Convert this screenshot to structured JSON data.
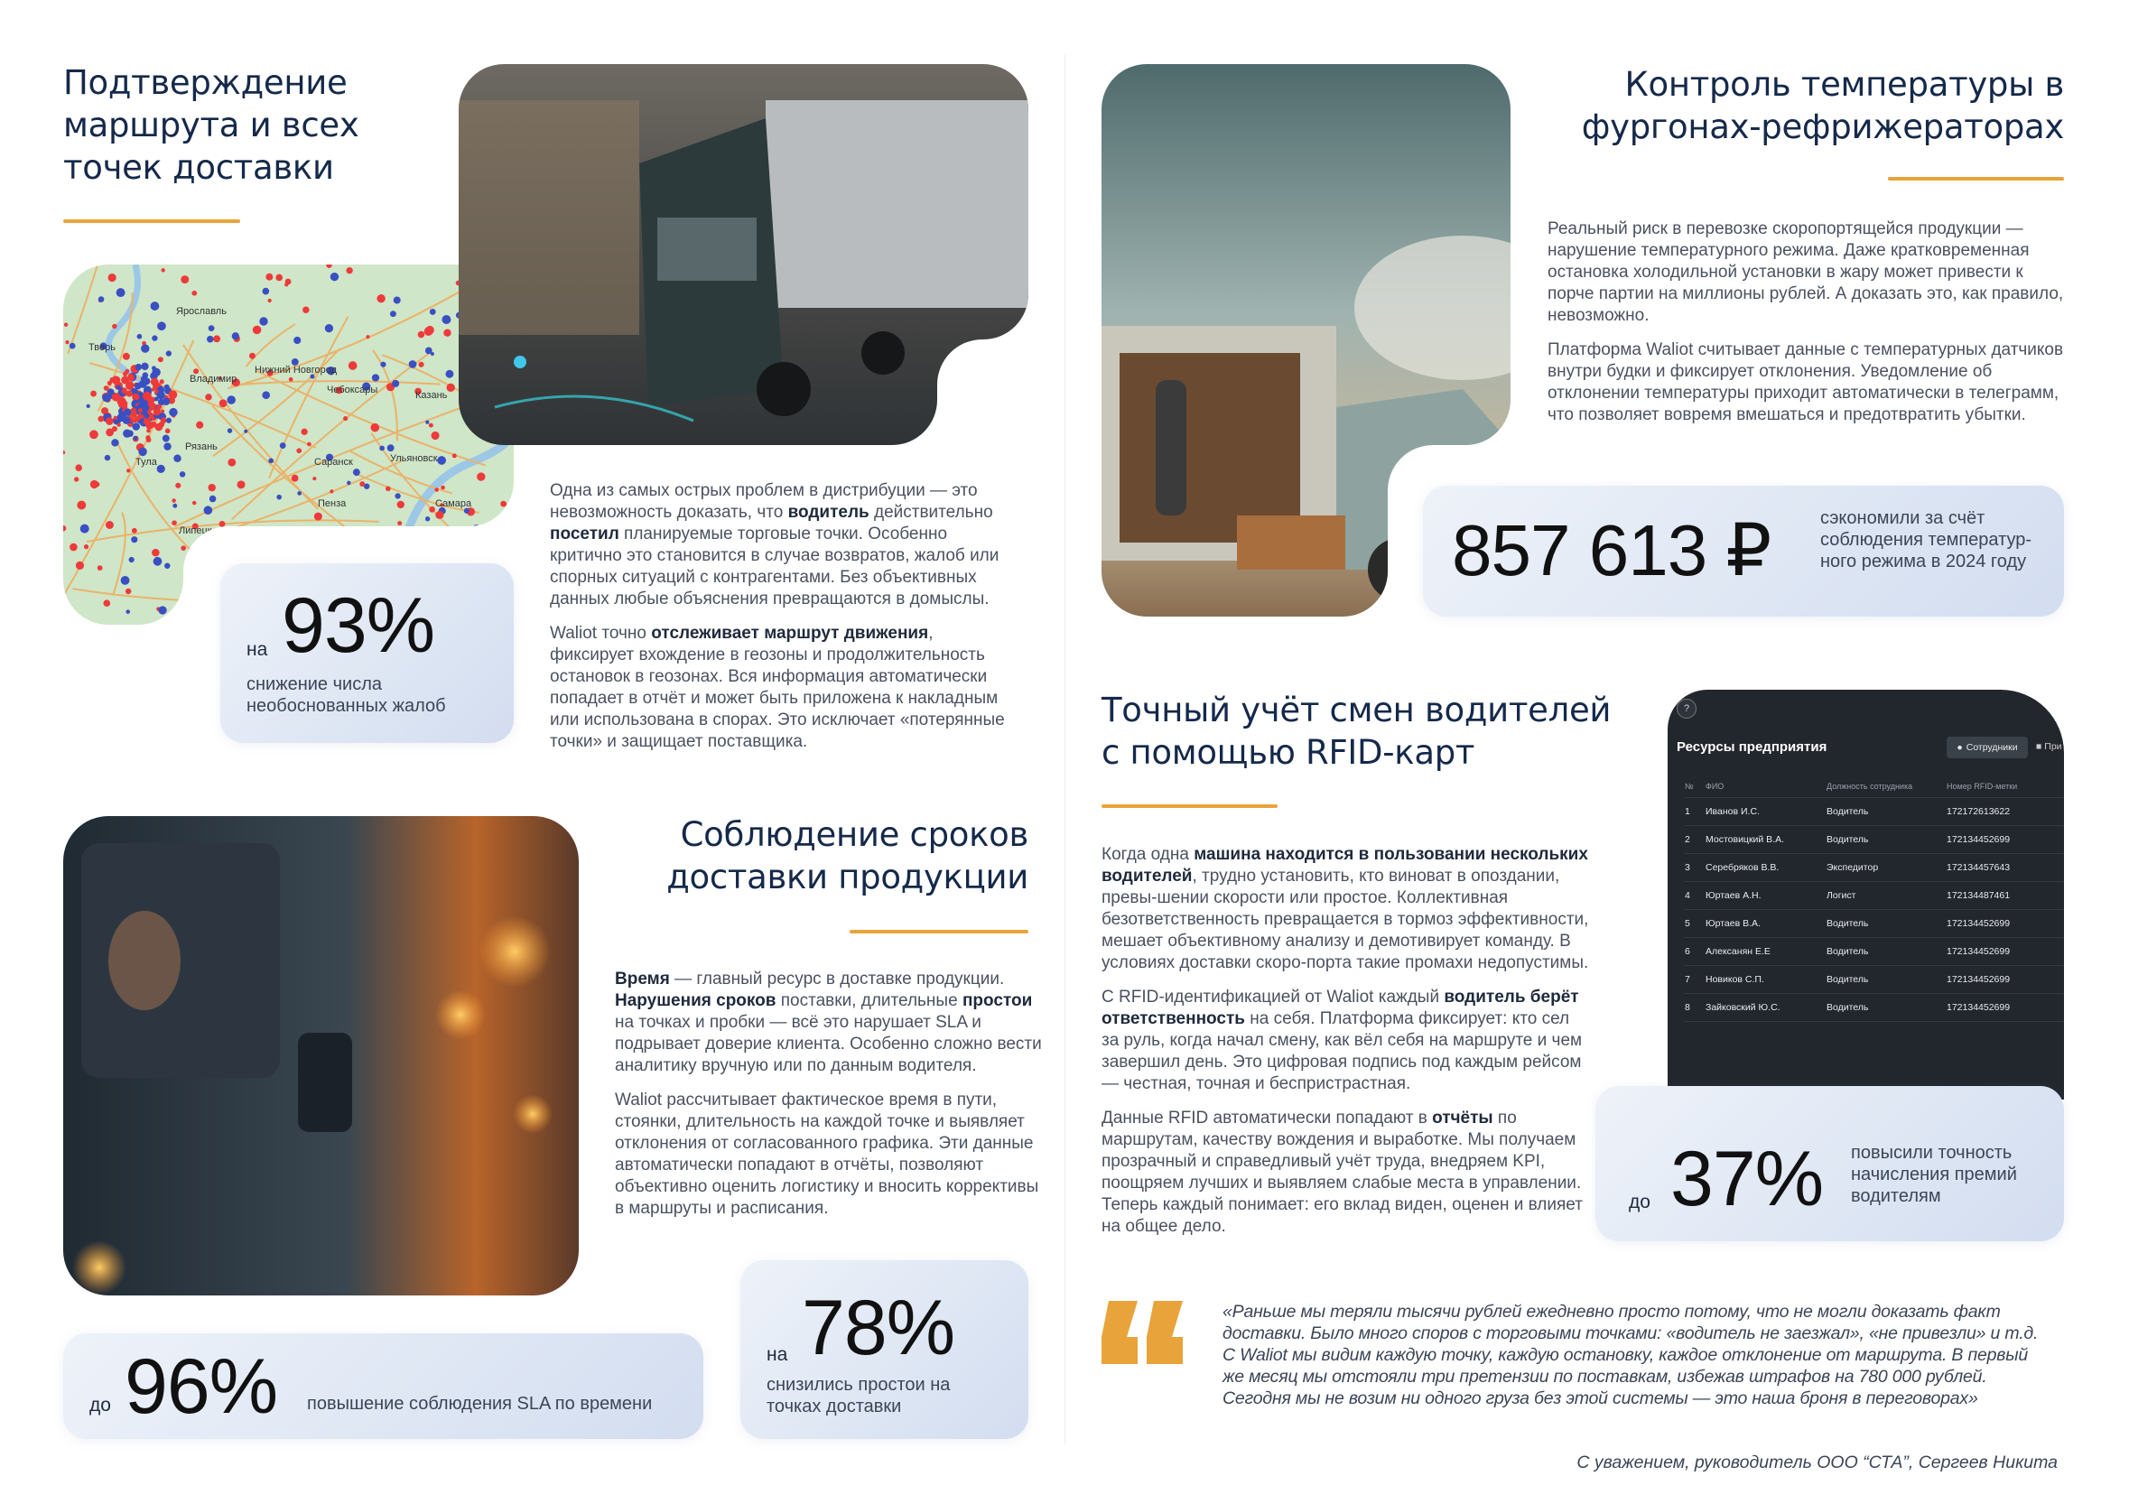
{
  "accent": "#e8a33a",
  "heading_color": "#15294a",
  "section_route": {
    "title": [
      "Подтверждение",
      "маршрута и всех",
      "точек доставки"
    ],
    "paragraphs": [
      [
        {
          "t": "Одна из самых острых проблем в дистрибуции — это невозможность доказать, что "
        },
        {
          "t": "водитель",
          "b": true
        },
        {
          "t": " действительно "
        },
        {
          "t": "посетил",
          "b": true
        },
        {
          "t": " планируемые торговые точки. Особенно критично это становится в случае возвратов, жалоб или спорных ситуаций с контрагентами. Без объективных данных любые объяснения превращаются в домыслы."
        }
      ],
      [
        {
          "t": "Waliot точно "
        },
        {
          "t": "отслеживает маршрут движения",
          "b": true
        },
        {
          "t": ", фиксирует вхождение в геозоны и продолжительность остановок в геозонах. Вся информация автоматически попадает в отчёт и может быть приложена к накладным или использована в спорах. Это исключает «потерянные точки» и защищает поставщика."
        }
      ]
    ],
    "stat": {
      "prefix": "на",
      "value": "93%",
      "label": "снижение числа необоснованных жалоб"
    },
    "map_labels": [
      "Ярославль",
      "Тверь",
      "Владимир",
      "Нижний Новгород",
      "Чебоксары",
      "Казань",
      "Рязань",
      "Тула",
      "Саранск",
      "Ульяновск",
      "Пенза",
      "Липецк",
      "Самара"
    ]
  },
  "section_sla": {
    "title": [
      "Соблюдение сроков",
      "доставки продукции"
    ],
    "paragraphs": [
      [
        {
          "t": "Время",
          "b": true
        },
        {
          "t": " — главный ресурс в доставке продукции. "
        },
        {
          "t": "Нарушения сроков",
          "b": true
        },
        {
          "t": " поставки, длительные "
        },
        {
          "t": "простои",
          "b": true
        },
        {
          "t": " на точках и пробки — всё это нарушает SLA и подрывает доверие клиента. Особенно сложно вести аналитику вручную или по данным водителя."
        }
      ],
      [
        {
          "t": "Waliot рассчитывает фактическое время в пути, стоянки, длительность на каждой точке и выявляет отклонения от согласованного графика. Эти данные автоматически попадают в отчёты, позволяют объективно оценить логистику и вносить коррективы в маршруты и расписания."
        }
      ]
    ],
    "stat_sla": {
      "prefix": "до",
      "value": "96%",
      "label": "повышение соблюдения SLA по времени"
    },
    "stat_idle": {
      "prefix": "на",
      "value": "78%",
      "label": "снизились простои на точках доставки"
    }
  },
  "section_temp": {
    "title": [
      "Контроль температуры в",
      "фургонах-рефрижераторах"
    ],
    "paragraphs": [
      [
        {
          "t": "Реальный риск в перевозке скоропортящейся продукции — нарушение температурного режима. Даже кратковременная остановка холодильной установки в жару может привести к порче партии на миллионы рублей. А доказать это, как правило, невозможно."
        }
      ],
      [
        {
          "t": "Платформа Waliot считывает данные с температурных датчиков внутри будки и фиксирует отклонения. Уведомление об отклонении температуры приходит автоматически в телеграмм, что позволяет вовремя вмешаться и предотвратить убытки."
        }
      ]
    ],
    "stat": {
      "value": "857 613 ₽",
      "label": "сэкономили за счёт соблюдения температур-ного режима в 2024 году"
    }
  },
  "section_rfid": {
    "title": [
      "Точный учёт смен водителей",
      "с помощью RFID-карт"
    ],
    "paragraphs": [
      [
        {
          "t": "Когда одна "
        },
        {
          "t": "машина находится в пользовании нескольких водителей",
          "b": true
        },
        {
          "t": ", трудно установить, кто виноват в опоздании, превы-шении скорости или простое. Коллективная безответственность превращается в тормоз эффективности, мешает объективному анализу и демотивирует команду. В условиях доставки скоро-порта такие промахи недопустимы."
        }
      ],
      [
        {
          "t": "С RFID-идентификацией от Waliot каждый "
        },
        {
          "t": "водитель берёт ответственность",
          "b": true
        },
        {
          "t": " на себя. Платформа фиксирует: кто сел за руль, когда начал смену, как вёл себя на маршруте и чем завершил день. Это цифровая подпись под каждым рейсом — честная, точная и беспристрастная."
        }
      ],
      [
        {
          "t": "Данные RFID автоматически попадают в "
        },
        {
          "t": "отчёты",
          "b": true
        },
        {
          "t": " по маршрутам, качеству вождения и выработке. Мы получаем прозрачный и справедливый учёт труда, внедряем KPI, поощряем лучших и выявляем слабые места в управлении. Теперь каждый понимает: его вклад виден, оценен и влияет на общее дело."
        }
      ]
    ],
    "stat": {
      "prefix": "до",
      "value": "37%",
      "label": "повысили точность начисления премий водителям"
    },
    "app": {
      "title": "Ресурсы предприятия",
      "tab_active": "Сотрудники",
      "tab_next": "При",
      "columns": [
        "№",
        "ФИО",
        "Должность сотрудника",
        "Номер RFID-метки"
      ],
      "rows": [
        [
          "1",
          "Иванов И.С.",
          "Водитель",
          "172172613622"
        ],
        [
          "2",
          "Мостовицкий В.А.",
          "Водитель",
          "172134452699"
        ],
        [
          "3",
          "Серебряков В.В.",
          "Экспедитор",
          "172134457643"
        ],
        [
          "4",
          "Юртаев А.Н.",
          "Логист",
          "172134487461"
        ],
        [
          "5",
          "Юртаев В.А.",
          "Водитель",
          "172134452699"
        ],
        [
          "6",
          "Алексанян Е.Е",
          "Водитель",
          "172134452699"
        ],
        [
          "7",
          "Новиков С.П.",
          "Водитель",
          "172134452699"
        ],
        [
          "8",
          "Зайковский Ю.С.",
          "Водитель",
          "172134452699"
        ]
      ]
    }
  },
  "testimonial": {
    "quote": "«Раньше мы теряли тысячи рублей ежедневно просто потому, что не могли доказать факт доставки. Было много споров с торговыми точками: «водитель не заезжал», «не привезли» и т.д. С Waliot мы видим каждую точку, каждую остановку, каждое отклонение от маршрута. В первый же месяц мы отстояли три претензии по поставкам, избежав штрафов на 780 000 рублей. Сегодня мы не возим ни одного груза без этой системы — это наша броня в переговорах»",
    "signature": "С уважением, руководитель ООО “СТА”, Сергеев Никита"
  }
}
